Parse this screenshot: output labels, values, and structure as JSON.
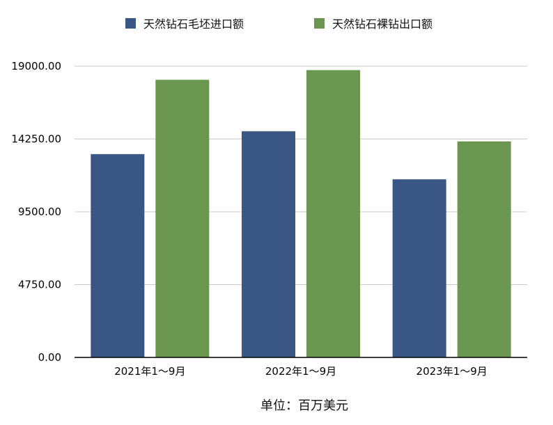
{
  "chart_data": {
    "type": "bar",
    "categories": [
      "2021年1～9月",
      "2022年1～9月",
      "2023年1～9月"
    ],
    "series": [
      {
        "name": "天然钻石毛坯进口额",
        "color": "#3a5685",
        "values": [
          13263,
          14755,
          11621
        ]
      },
      {
        "name": "天然钻石裸钻出口额",
        "color": "#6b964f",
        "values": [
          18114,
          18745,
          14090
        ]
      }
    ],
    "yticks": [
      "0.00",
      "4750.00",
      "9500.00",
      "14250.00",
      "19000.00"
    ],
    "ylim": [
      0,
      19000
    ],
    "grid": true,
    "legend_position": "top",
    "unit_label": "单位：百万美元"
  }
}
